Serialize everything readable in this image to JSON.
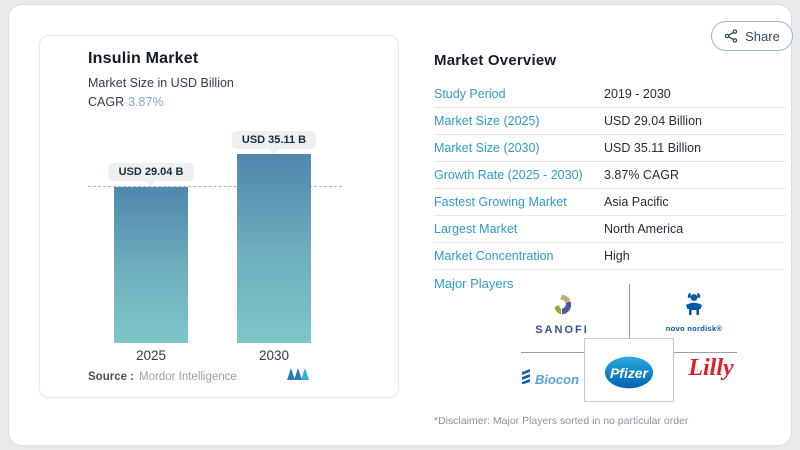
{
  "share": {
    "label": "Share"
  },
  "chart_panel": {
    "title": "Insulin Market",
    "subtitle": "Market Size in USD Billion",
    "cagr_label": "CAGR",
    "cagr_value": "3.87%",
    "source_label": "Source :",
    "source_value": "Mordor Intelligence",
    "bars": [
      {
        "year": "2025",
        "pill": "USD 29.04 B"
      },
      {
        "year": "2030",
        "pill": "USD 35.11 B"
      }
    ]
  },
  "chart_data": {
    "type": "bar",
    "title": "Insulin Market",
    "subtitle": "Market Size in USD Billion",
    "cagr": "3.87%",
    "unit": "USD Billion",
    "categories": [
      "2025",
      "2030"
    ],
    "values": [
      29.04,
      35.11
    ],
    "bar_labels": [
      "USD 29.04 B",
      "USD 35.11 B"
    ],
    "reference_line": 29.04,
    "ylim": [
      0,
      38
    ],
    "grid": false,
    "legend": false
  },
  "overview": {
    "title": "Market Overview",
    "rows": [
      {
        "label": "Study Period",
        "value": "2019 - 2030"
      },
      {
        "label": "Market Size (2025)",
        "value": "USD 29.04 Billion"
      },
      {
        "label": "Market Size (2030)",
        "value": "USD 35.11 Billion"
      },
      {
        "label": "Growth Rate (2025 - 2030)",
        "value": "3.87% CAGR"
      },
      {
        "label": "Fastest Growing Market",
        "value": "Asia Pacific"
      },
      {
        "label": "Largest Market",
        "value": "North America"
      },
      {
        "label": "Market Concentration",
        "value": "High"
      }
    ],
    "major_players_label": "Major Players",
    "players": {
      "sanofi": "SANOFI",
      "novo_nordisk": "novo nordisk®",
      "biocon": "Biocon",
      "pfizer": "Pfizer",
      "lilly": "Lilly"
    },
    "disclaimer": "*Disclaimer: Major Players sorted in no particular order"
  },
  "colors": {
    "accent_blue": "#2e9bca",
    "cagr_blue": "#7fa9cd",
    "bar_gradient_top": "#4f87ad",
    "bar_gradient_bottom": "#7ec6c9",
    "heading_dark": "#16202b",
    "novo_blue": "#0059a8",
    "lilly_red": "#e01f26",
    "pfizer_blue": "#0072bc",
    "sanofi_purple": "#3c4ba0",
    "biocon_blue": "#5fa0d8"
  }
}
